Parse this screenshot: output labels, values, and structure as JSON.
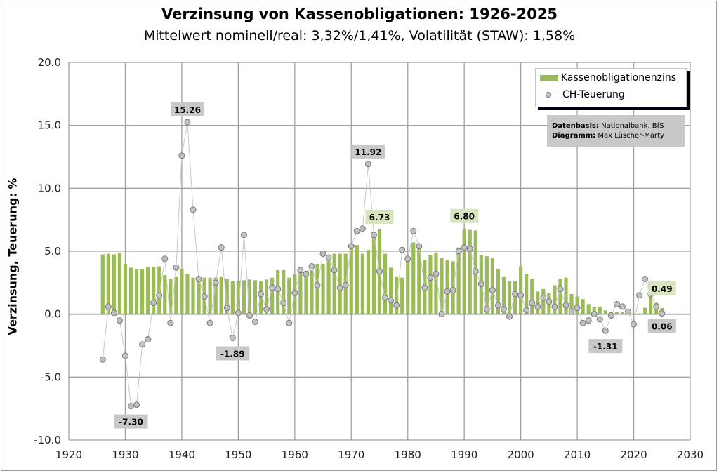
{
  "chart_data": {
    "type": "bar",
    "title": "Verzinsung von Kassenobligationen: 1926-2025",
    "subtitle": "Mittelwert nominell/real:  3,32%/1,41%,  Volatilität (STAW): 1,58%",
    "xlabel": "",
    "ylabel": "Verzinsung, Teuerung: %",
    "xlim": [
      1920,
      2030
    ],
    "ylim": [
      -10,
      20
    ],
    "xticks": [
      "1920",
      "1930",
      "1940",
      "1950",
      "1960",
      "1970",
      "1980",
      "1990",
      "2000",
      "2010",
      "2020",
      "2030"
    ],
    "yticks": [
      "20.0",
      "15.0",
      "10.0",
      "5.0",
      "0.0",
      "-5.0",
      "-10.0"
    ],
    "grid": true,
    "legend_position": "top-right",
    "x_start": 1926,
    "series": [
      {
        "name": "Kassenobligationenzins",
        "type": "bar",
        "color": "#9bbb59",
        "values": [
          4.75,
          4.8,
          4.75,
          4.85,
          4.0,
          3.7,
          3.55,
          3.55,
          3.75,
          3.75,
          3.8,
          3.1,
          2.8,
          3.0,
          3.6,
          3.2,
          2.9,
          2.9,
          2.9,
          2.9,
          2.9,
          3.0,
          2.8,
          2.6,
          2.6,
          2.7,
          2.75,
          2.7,
          2.6,
          2.75,
          2.9,
          3.5,
          3.5,
          2.9,
          3.2,
          3.3,
          3.3,
          3.5,
          4.0,
          4.0,
          4.6,
          4.8,
          4.8,
          4.8,
          5.3,
          5.5,
          4.8,
          5.1,
          6.5,
          6.73,
          4.8,
          3.7,
          3.0,
          2.9,
          4.3,
          5.7,
          5.2,
          4.3,
          4.7,
          4.9,
          4.5,
          4.3,
          4.2,
          5.3,
          6.8,
          6.7,
          6.65,
          4.7,
          4.6,
          4.5,
          3.6,
          3.0,
          2.6,
          2.6,
          3.8,
          3.2,
          2.8,
          1.8,
          2.0,
          1.7,
          2.3,
          2.8,
          2.9,
          1.6,
          1.4,
          1.2,
          0.8,
          0.6,
          0.6,
          0.3,
          0.15,
          0.15,
          0.15,
          0.05,
          0.05,
          0.05,
          0.5,
          1.6,
          0.9,
          0.49
        ]
      },
      {
        "name": "CH-Teuerung",
        "type": "line",
        "color": "#c0c0c0",
        "values": [
          -3.6,
          0.6,
          0.1,
          -0.5,
          -3.3,
          -7.3,
          -7.2,
          -2.4,
          -2.0,
          0.9,
          1.5,
          4.4,
          -0.7,
          3.7,
          12.6,
          15.26,
          8.3,
          2.8,
          1.4,
          -0.7,
          2.5,
          5.3,
          0.5,
          -1.89,
          0.1,
          6.3,
          -0.1,
          -0.6,
          1.6,
          0.4,
          2.1,
          2.0,
          0.9,
          -0.7,
          1.7,
          3.5,
          3.2,
          3.8,
          2.3,
          4.8,
          4.5,
          3.5,
          2.1,
          2.3,
          5.4,
          6.6,
          6.8,
          11.92,
          6.3,
          3.4,
          1.3,
          1.1,
          0.7,
          5.1,
          4.4,
          6.6,
          5.4,
          2.1,
          2.9,
          3.2,
          0.0,
          1.8,
          1.9,
          5.0,
          5.3,
          5.2,
          3.4,
          2.4,
          0.4,
          1.9,
          0.7,
          0.4,
          -0.2,
          1.6,
          1.5,
          0.3,
          0.9,
          0.6,
          1.3,
          1.0,
          0.6,
          2.0,
          0.7,
          0.2,
          0.5,
          -0.7,
          -0.5,
          0.0,
          -0.4,
          -1.31,
          -0.1,
          0.8,
          0.6,
          0.2,
          -0.8,
          1.5,
          2.8,
          1.6,
          0.6,
          0.06
        ]
      }
    ],
    "annotations": [
      {
        "text": "15.26",
        "year": 1941,
        "value": 15.26,
        "series": "CH-Teuerung",
        "pos": "above",
        "bg": "#c8c8c8"
      },
      {
        "text": "-7.30",
        "year": 1931,
        "value": -7.3,
        "series": "CH-Teuerung",
        "pos": "below",
        "bg": "#c8c8c8"
      },
      {
        "text": "-1.89",
        "year": 1949,
        "value": -1.89,
        "series": "CH-Teuerung",
        "pos": "below",
        "bg": "#c8c8c8"
      },
      {
        "text": "11.92",
        "year": 1973,
        "value": 11.92,
        "series": "CH-Teuerung",
        "pos": "above",
        "bg": "#c8c8c8"
      },
      {
        "text": "6.73",
        "year": 1975,
        "value": 6.73,
        "series": "Kassenobligationenzins",
        "pos": "above",
        "bg": "#d7e4bd"
      },
      {
        "text": "6.80",
        "year": 1990,
        "value": 6.8,
        "series": "Kassenobligationenzins",
        "pos": "above",
        "bg": "#d7e4bd"
      },
      {
        "text": "-1.31",
        "year": 2015,
        "value": -1.31,
        "series": "CH-Teuerung",
        "pos": "below",
        "bg": "#c8c8c8"
      },
      {
        "text": "0.49",
        "year": 2025,
        "value": 0.49,
        "series": "Kassenobligationenzins",
        "pos": "upper-right",
        "bg": "#d7e4bd"
      },
      {
        "text": "0.06",
        "year": 2025,
        "value": 0.06,
        "series": "CH-Teuerung",
        "pos": "lower-right",
        "bg": "#c8c8c8"
      }
    ]
  },
  "source_box": {
    "datenbasis_label": "Datenbasis:",
    "datenbasis_value": "Nationalbank, BfS",
    "diagramm_label": "Diagramm:",
    "diagramm_value": "Max Lüscher-Marty"
  }
}
